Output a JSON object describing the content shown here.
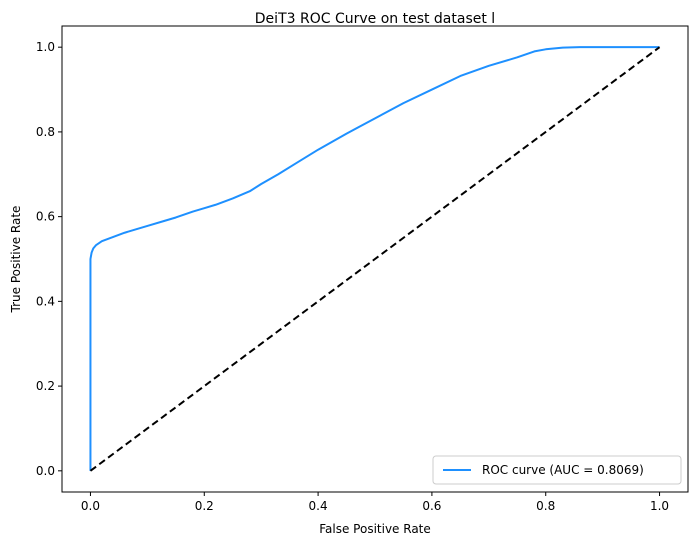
{
  "colors": {
    "roc": "#1e90ff",
    "baseline": "#000000",
    "frame": "#000000",
    "legend_border": "#cccccc"
  },
  "chart_data": {
    "type": "line",
    "title": "DeiT3 ROC Curve on test dataset l",
    "xlabel": "False Positive Rate",
    "ylabel": "True Positive Rate",
    "xlim": [
      -0.05,
      1.05
    ],
    "ylim": [
      -0.05,
      1.05
    ],
    "xticks": [
      0.0,
      0.2,
      0.4,
      0.6,
      0.8,
      1.0
    ],
    "yticks": [
      0.0,
      0.2,
      0.4,
      0.6,
      0.8,
      1.0
    ],
    "xtick_labels": [
      "0.0",
      "0.2",
      "0.4",
      "0.6",
      "0.8",
      "1.0"
    ],
    "ytick_labels": [
      "0.0",
      "0.2",
      "0.4",
      "0.6",
      "0.8",
      "1.0"
    ],
    "grid": false,
    "legend_position": "lower-right",
    "series": [
      {
        "name": "ROC curve (AUC = 0.8069)",
        "style": "solid",
        "x": [
          0.0,
          0.0,
          0.0,
          0.002,
          0.005,
          0.01,
          0.02,
          0.04,
          0.06,
          0.08,
          0.1,
          0.13,
          0.15,
          0.18,
          0.2,
          0.22,
          0.25,
          0.28,
          0.3,
          0.33,
          0.36,
          0.4,
          0.45,
          0.5,
          0.55,
          0.6,
          0.65,
          0.7,
          0.75,
          0.78,
          0.8,
          0.83,
          0.86,
          0.9,
          0.95,
          1.0
        ],
        "y": [
          0.0,
          0.45,
          0.5,
          0.515,
          0.525,
          0.533,
          0.542,
          0.552,
          0.562,
          0.57,
          0.578,
          0.59,
          0.598,
          0.612,
          0.62,
          0.628,
          0.643,
          0.66,
          0.677,
          0.7,
          0.725,
          0.758,
          0.796,
          0.832,
          0.868,
          0.9,
          0.932,
          0.956,
          0.976,
          0.99,
          0.995,
          0.999,
          1.0,
          1.0,
          1.0,
          1.0
        ]
      },
      {
        "style": "dashed",
        "x": [
          0.0,
          1.0
        ],
        "y": [
          0.0,
          1.0
        ]
      }
    ]
  }
}
